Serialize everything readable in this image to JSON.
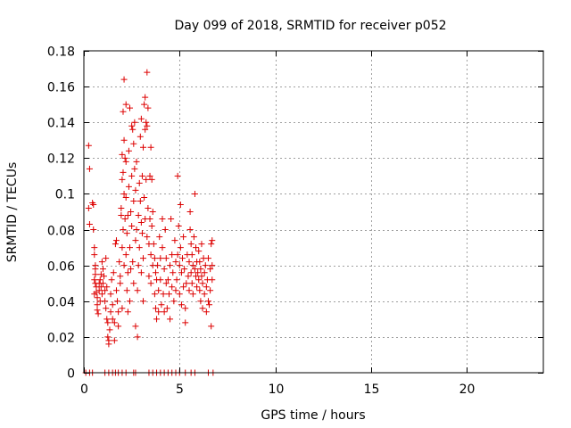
{
  "chart_data": {
    "type": "scatter",
    "title": "Day 099 of 2018, SRMTID for receiver p052",
    "xlabel": "GPS time / hours",
    "ylabel": "SRMTID / TECUs",
    "xlim": [
      0,
      24
    ],
    "ylim": [
      0,
      0.18
    ],
    "x_ticks": [
      0,
      5,
      10,
      15,
      20
    ],
    "x_tick_labels": [
      "0",
      "5",
      "10",
      "15",
      "20"
    ],
    "y_ticks": [
      0,
      0.02,
      0.04,
      0.06,
      0.08,
      0.1,
      0.12,
      0.14,
      0.16,
      0.18
    ],
    "y_tick_labels": [
      "0",
      "0.02",
      "0.04",
      "0.06",
      "0.08",
      "0.1",
      "0.12",
      "0.14",
      "0.16",
      "0.18"
    ],
    "grid": true,
    "marker": "+",
    "color": "#dd0000",
    "series": [
      {
        "name": "SRMTID",
        "points": [
          [
            0.25,
            0.127
          ],
          [
            0.3,
            0.114
          ],
          [
            0.25,
            0.092
          ],
          [
            0.45,
            0.095
          ],
          [
            0.5,
            0.094
          ],
          [
            0.3,
            0.083
          ],
          [
            0.5,
            0.08
          ],
          [
            0.55,
            0.07
          ],
          [
            0.55,
            0.066
          ],
          [
            0.6,
            0.058
          ],
          [
            0.6,
            0.055
          ],
          [
            0.6,
            0.05
          ],
          [
            0.65,
            0.048
          ],
          [
            0.65,
            0.045
          ],
          [
            0.7,
            0.042
          ],
          [
            0.7,
            0.038
          ],
          [
            0.7,
            0.035
          ],
          [
            0.75,
            0.033
          ],
          [
            0.55,
            0.052
          ],
          [
            0.55,
            0.044
          ],
          [
            0.6,
            0.06
          ],
          [
            0.8,
            0.05
          ],
          [
            0.8,
            0.046
          ],
          [
            0.85,
            0.052
          ],
          [
            0.85,
            0.04
          ],
          [
            0.9,
            0.055
          ],
          [
            0.9,
            0.048
          ],
          [
            0.95,
            0.062
          ],
          [
            0.95,
            0.044
          ],
          [
            1.0,
            0.058
          ],
          [
            1.0,
            0.05
          ],
          [
            1.05,
            0.054
          ],
          [
            1.1,
            0.046
          ],
          [
            1.1,
            0.04
          ],
          [
            1.15,
            0.064
          ],
          [
            1.15,
            0.036
          ],
          [
            1.2,
            0.048
          ],
          [
            1.2,
            0.03
          ],
          [
            1.25,
            0.028
          ],
          [
            1.25,
            0.02
          ],
          [
            1.3,
            0.018
          ],
          [
            1.3,
            0.016
          ],
          [
            1.35,
            0.024
          ],
          [
            1.4,
            0.034
          ],
          [
            1.4,
            0.044
          ],
          [
            1.45,
            0.052
          ],
          [
            1.5,
            0.038
          ],
          [
            1.5,
            0.03
          ],
          [
            1.55,
            0.056
          ],
          [
            1.6,
            0.018
          ],
          [
            1.6,
            0.028
          ],
          [
            1.65,
            0.072
          ],
          [
            1.7,
            0.074
          ],
          [
            1.7,
            0.046
          ],
          [
            1.75,
            0.04
          ],
          [
            1.8,
            0.034
          ],
          [
            1.8,
            0.026
          ],
          [
            1.85,
            0.062
          ],
          [
            1.9,
            0.054
          ],
          [
            1.9,
            0.05
          ],
          [
            1.95,
            0.092
          ],
          [
            1.95,
            0.088
          ],
          [
            2.0,
            0.122
          ],
          [
            2.0,
            0.108
          ],
          [
            2.0,
            0.07
          ],
          [
            2.0,
            0.036
          ],
          [
            2.05,
            0.146
          ],
          [
            2.05,
            0.112
          ],
          [
            2.05,
            0.08
          ],
          [
            2.1,
            0.164
          ],
          [
            2.1,
            0.13
          ],
          [
            2.1,
            0.1
          ],
          [
            2.1,
            0.06
          ],
          [
            2.15,
            0.12
          ],
          [
            2.15,
            0.086
          ],
          [
            2.2,
            0.15
          ],
          [
            2.2,
            0.118
          ],
          [
            2.2,
            0.098
          ],
          [
            2.2,
            0.066
          ],
          [
            2.25,
            0.078
          ],
          [
            2.25,
            0.046
          ],
          [
            2.3,
            0.088
          ],
          [
            2.3,
            0.056
          ],
          [
            2.3,
            0.034
          ],
          [
            2.35,
            0.124
          ],
          [
            2.35,
            0.104
          ],
          [
            2.4,
            0.148
          ],
          [
            2.4,
            0.07
          ],
          [
            2.4,
            0.04
          ],
          [
            2.45,
            0.09
          ],
          [
            2.45,
            0.058
          ],
          [
            2.5,
            0.138
          ],
          [
            2.5,
            0.11
          ],
          [
            2.5,
            0.082
          ],
          [
            2.55,
            0.136
          ],
          [
            2.55,
            0.062
          ],
          [
            2.6,
            0.128
          ],
          [
            2.6,
            0.096
          ],
          [
            2.6,
            0.05
          ],
          [
            2.65,
            0.14
          ],
          [
            2.65,
            0.114
          ],
          [
            2.7,
            0.102
          ],
          [
            2.7,
            0.074
          ],
          [
            2.7,
            0.026
          ],
          [
            2.75,
            0.118
          ],
          [
            2.75,
            0.08
          ],
          [
            2.8,
            0.02
          ],
          [
            2.8,
            0.046
          ],
          [
            2.85,
            0.088
          ],
          [
            2.85,
            0.06
          ],
          [
            2.9,
            0.106
          ],
          [
            2.9,
            0.07
          ],
          [
            2.95,
            0.132
          ],
          [
            2.95,
            0.096
          ],
          [
            3.0,
            0.142
          ],
          [
            3.0,
            0.084
          ],
          [
            3.0,
            0.056
          ],
          [
            3.05,
            0.11
          ],
          [
            3.05,
            0.078
          ],
          [
            3.1,
            0.126
          ],
          [
            3.1,
            0.064
          ],
          [
            3.1,
            0.04
          ],
          [
            3.15,
            0.15
          ],
          [
            3.15,
            0.098
          ],
          [
            3.2,
            0.154
          ],
          [
            3.2,
            0.136
          ],
          [
            3.2,
            0.086
          ],
          [
            3.25,
            0.14
          ],
          [
            3.25,
            0.108
          ],
          [
            3.3,
            0.168
          ],
          [
            3.3,
            0.138
          ],
          [
            3.3,
            0.076
          ],
          [
            3.35,
            0.148
          ],
          [
            3.35,
            0.092
          ],
          [
            3.4,
            0.072
          ],
          [
            3.4,
            0.054
          ],
          [
            3.45,
            0.11
          ],
          [
            3.45,
            0.086
          ],
          [
            3.5,
            0.126
          ],
          [
            3.5,
            0.066
          ],
          [
            3.5,
            0.05
          ],
          [
            3.55,
            0.108
          ],
          [
            3.55,
            0.082
          ],
          [
            3.6,
            0.09
          ],
          [
            3.6,
            0.06
          ],
          [
            3.65,
            0.072
          ],
          [
            3.7,
            0.064
          ],
          [
            3.7,
            0.044
          ],
          [
            3.75,
            0.056
          ],
          [
            3.75,
            0.036
          ],
          [
            3.8,
            0.052
          ],
          [
            3.8,
            0.03
          ],
          [
            3.85,
            0.06
          ],
          [
            3.9,
            0.046
          ],
          [
            3.9,
            0.034
          ],
          [
            3.95,
            0.076
          ],
          [
            4.0,
            0.064
          ],
          [
            4.0,
            0.052
          ],
          [
            4.05,
            0.038
          ],
          [
            4.1,
            0.086
          ],
          [
            4.1,
            0.07
          ],
          [
            4.15,
            0.044
          ],
          [
            4.2,
            0.058
          ],
          [
            4.2,
            0.034
          ],
          [
            4.25,
            0.08
          ],
          [
            4.3,
            0.064
          ],
          [
            4.3,
            0.05
          ],
          [
            4.35,
            0.036
          ],
          [
            4.4,
            0.052
          ],
          [
            4.45,
            0.044
          ],
          [
            4.5,
            0.06
          ],
          [
            4.5,
            0.03
          ],
          [
            4.55,
            0.086
          ],
          [
            4.6,
            0.066
          ],
          [
            4.6,
            0.048
          ],
          [
            4.65,
            0.056
          ],
          [
            4.7,
            0.04
          ],
          [
            4.75,
            0.074
          ],
          [
            4.8,
            0.062
          ],
          [
            4.8,
            0.046
          ],
          [
            4.85,
            0.052
          ],
          [
            4.9,
            0.11
          ],
          [
            4.9,
            0.066
          ],
          [
            4.95,
            0.082
          ],
          [
            5.0,
            0.06
          ],
          [
            5.0,
            0.044
          ],
          [
            5.05,
            0.094
          ],
          [
            5.05,
            0.07
          ],
          [
            5.1,
            0.056
          ],
          [
            5.1,
            0.038
          ],
          [
            5.15,
            0.064
          ],
          [
            5.2,
            0.076
          ],
          [
            5.2,
            0.048
          ],
          [
            5.25,
            0.058
          ],
          [
            5.3,
            0.036
          ],
          [
            5.3,
            0.028
          ],
          [
            5.35,
            0.05
          ],
          [
            5.4,
            0.066
          ],
          [
            5.45,
            0.054
          ],
          [
            5.5,
            0.062
          ],
          [
            5.5,
            0.046
          ],
          [
            5.55,
            0.09
          ],
          [
            5.55,
            0.08
          ],
          [
            5.6,
            0.072
          ],
          [
            5.6,
            0.056
          ],
          [
            5.65,
            0.066
          ],
          [
            5.65,
            0.05
          ],
          [
            5.7,
            0.06
          ],
          [
            5.7,
            0.044
          ],
          [
            5.75,
            0.076
          ],
          [
            5.8,
            0.1
          ],
          [
            5.8,
            0.058
          ],
          [
            5.85,
            0.07
          ],
          [
            5.85,
            0.054
          ],
          [
            5.9,
            0.062
          ],
          [
            5.9,
            0.048
          ],
          [
            5.95,
            0.056
          ],
          [
            6.0,
            0.068
          ],
          [
            6.0,
            0.052
          ],
          [
            6.05,
            0.062
          ],
          [
            6.05,
            0.046
          ],
          [
            6.1,
            0.058
          ],
          [
            6.1,
            0.04
          ],
          [
            6.15,
            0.072
          ],
          [
            6.15,
            0.054
          ],
          [
            6.2,
            0.05
          ],
          [
            6.2,
            0.036
          ],
          [
            6.25,
            0.064
          ],
          [
            6.3,
            0.056
          ],
          [
            6.3,
            0.044
          ],
          [
            6.35,
            0.06
          ],
          [
            6.4,
            0.048
          ],
          [
            6.4,
            0.034
          ],
          [
            6.45,
            0.052
          ],
          [
            6.5,
            0.064
          ],
          [
            6.5,
            0.04
          ],
          [
            6.55,
            0.038
          ],
          [
            6.6,
            0.058
          ],
          [
            6.6,
            0.046
          ],
          [
            6.65,
            0.072
          ],
          [
            6.65,
            0.026
          ],
          [
            6.7,
            0.06
          ],
          [
            6.7,
            0.074
          ],
          [
            6.7,
            0.052
          ],
          [
            0.1,
            0.0
          ],
          [
            0.3,
            0.0
          ],
          [
            0.45,
            0.0
          ],
          [
            1.1,
            0.0
          ],
          [
            1.3,
            0.0
          ],
          [
            1.5,
            0.0
          ],
          [
            1.65,
            0.0
          ],
          [
            1.8,
            0.0
          ],
          [
            2.0,
            0.0
          ],
          [
            2.2,
            0.0
          ],
          [
            2.6,
            0.0
          ],
          [
            2.7,
            0.0
          ],
          [
            3.4,
            0.0
          ],
          [
            3.6,
            0.0
          ],
          [
            3.8,
            0.0
          ],
          [
            4.0,
            0.0
          ],
          [
            4.2,
            0.0
          ],
          [
            4.4,
            0.0
          ],
          [
            4.6,
            0.0
          ],
          [
            4.8,
            0.0
          ],
          [
            5.0,
            0.0
          ],
          [
            5.3,
            0.0
          ],
          [
            5.6,
            0.0
          ],
          [
            5.8,
            0.0
          ],
          [
            6.5,
            0.0
          ],
          [
            6.75,
            0.0
          ]
        ]
      }
    ]
  }
}
